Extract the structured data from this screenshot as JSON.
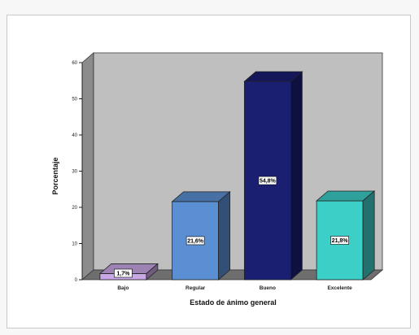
{
  "chart_data": {
    "type": "bar",
    "title": "",
    "xlabel": "Estado de ánimo general",
    "ylabel": "Porcentaje",
    "ylim": [
      0,
      60
    ],
    "yticks": [
      0,
      10,
      20,
      30,
      40,
      50,
      60
    ],
    "grid": false,
    "categories": [
      "Bajo",
      "Regular",
      "Bueno",
      "Excelente"
    ],
    "values": [
      1.7,
      21.6,
      54.8,
      21.8
    ],
    "data_labels": [
      "1,7%",
      "21,6%",
      "54,8%",
      "21,8%"
    ],
    "colors": [
      "#c9a8e6",
      "#5b8fd4",
      "#1a1f72",
      "#3ccfc8"
    ],
    "background_color": "#bfbfbf",
    "floor_color": "#6e6e6e",
    "style": "3d"
  }
}
